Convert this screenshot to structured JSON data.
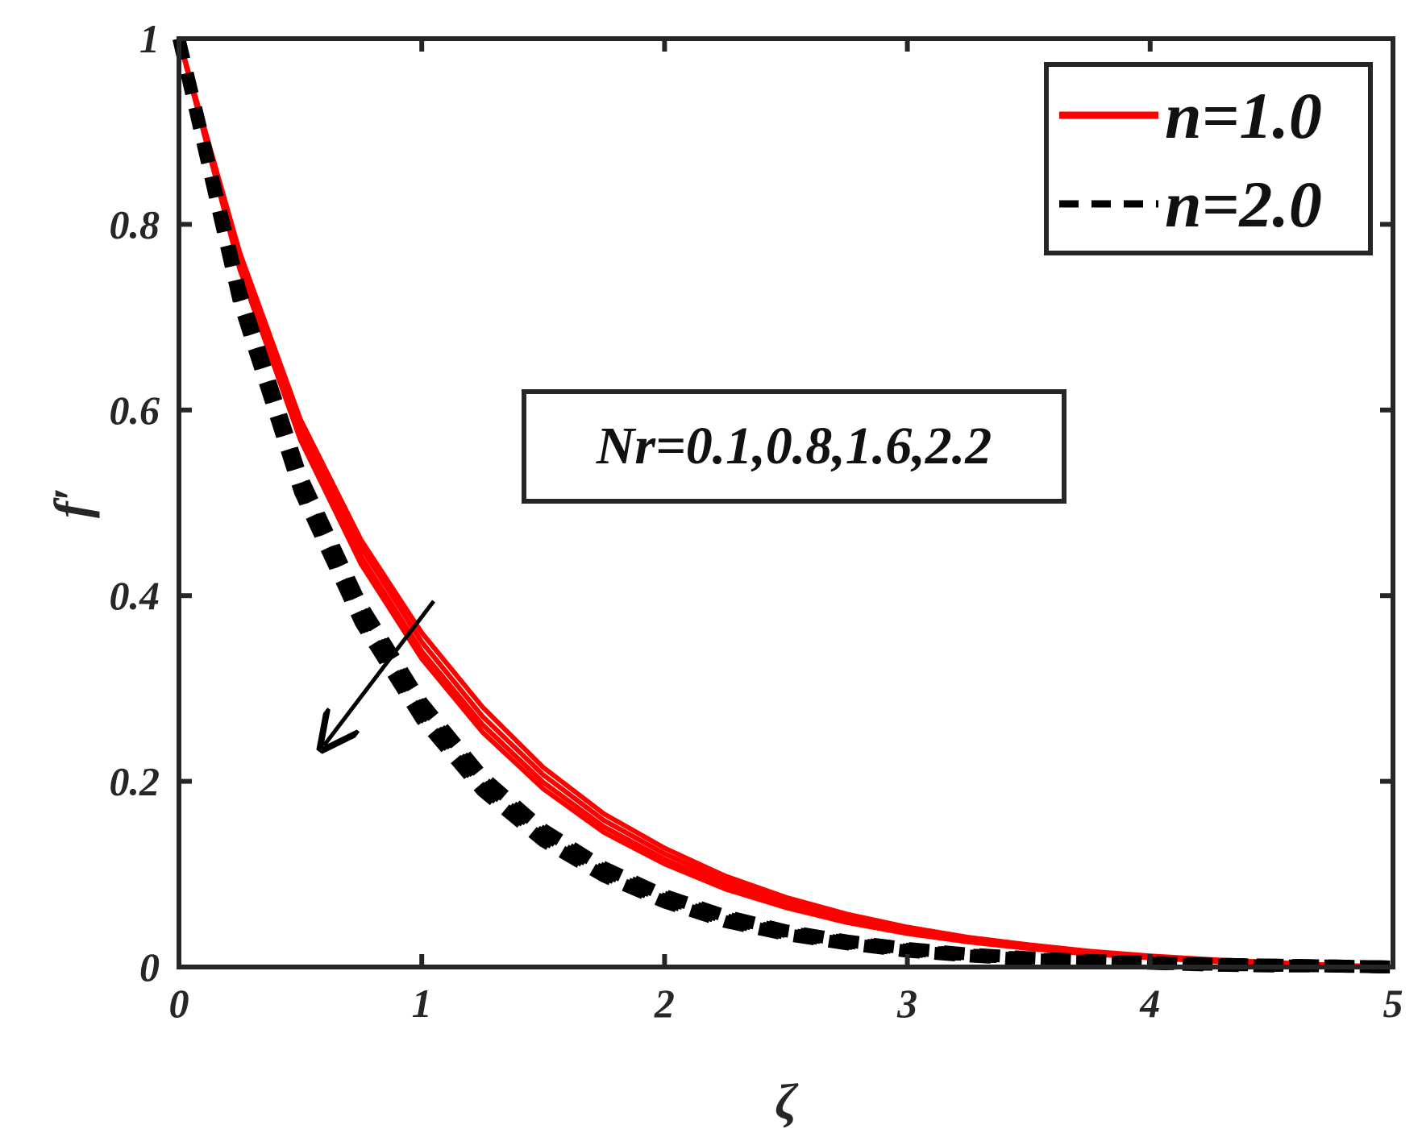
{
  "chart_data": {
    "type": "line",
    "xlabel": "ζ",
    "ylabel": "f′",
    "xlim": [
      0,
      5
    ],
    "ylim": [
      0,
      1
    ],
    "xticks": [
      "0",
      "1",
      "2",
      "3",
      "4",
      "5"
    ],
    "yticks": [
      "0",
      "0.2",
      "0.4",
      "0.6",
      "0.8",
      "1"
    ],
    "grid": false,
    "legend_position": "top-right",
    "legend": [
      {
        "label": "n=1.0",
        "color": "#ff0000",
        "style": "solid"
      },
      {
        "label": "n=2.0",
        "color": "#000000",
        "style": "dashed"
      }
    ],
    "annotation": {
      "text": "Nr=0.1,0.8,1.6,2.2",
      "arrow_direction": "decreasing with Nr"
    },
    "x": [
      0,
      0.25,
      0.5,
      0.75,
      1,
      1.25,
      1.5,
      1.75,
      2,
      2.25,
      2.5,
      2.75,
      3,
      3.25,
      3.5,
      3.75,
      4,
      4.25,
      4.5,
      4.75,
      5
    ],
    "series": [
      {
        "group": "n=1.0",
        "Nr": 0.1,
        "color": "#ff0000",
        "style": "solid",
        "y": [
          1,
          0.77,
          0.59,
          0.46,
          0.36,
          0.28,
          0.215,
          0.165,
          0.128,
          0.098,
          0.075,
          0.057,
          0.043,
          0.032,
          0.024,
          0.017,
          0.012,
          0.008,
          0.005,
          0.002,
          0
        ]
      },
      {
        "group": "n=1.0",
        "Nr": 0.8,
        "color": "#ff0000",
        "style": "solid",
        "y": [
          1,
          0.765,
          0.585,
          0.452,
          0.35,
          0.27,
          0.207,
          0.158,
          0.122,
          0.093,
          0.071,
          0.054,
          0.041,
          0.03,
          0.022,
          0.016,
          0.011,
          0.007,
          0.004,
          0.002,
          0
        ]
      },
      {
        "group": "n=1.0",
        "Nr": 1.6,
        "color": "#ff0000",
        "style": "solid",
        "y": [
          1,
          0.758,
          0.576,
          0.442,
          0.34,
          0.261,
          0.199,
          0.151,
          0.116,
          0.088,
          0.067,
          0.051,
          0.038,
          0.028,
          0.021,
          0.015,
          0.01,
          0.007,
          0.004,
          0.002,
          0
        ]
      },
      {
        "group": "n=1.0",
        "Nr": 2.2,
        "color": "#ff0000",
        "style": "solid",
        "y": [
          1,
          0.752,
          0.568,
          0.434,
          0.332,
          0.253,
          0.192,
          0.145,
          0.111,
          0.084,
          0.064,
          0.048,
          0.036,
          0.027,
          0.02,
          0.014,
          0.01,
          0.006,
          0.004,
          0.002,
          0
        ]
      },
      {
        "group": "n=2.0",
        "Nr": 0.1,
        "color": "#000000",
        "style": "dashed",
        "y": [
          1,
          0.73,
          0.53,
          0.39,
          0.285,
          0.205,
          0.148,
          0.107,
          0.077,
          0.055,
          0.039,
          0.028,
          0.02,
          0.014,
          0.01,
          0.007,
          0.005,
          0.003,
          0.002,
          0.001,
          0
        ]
      },
      {
        "group": "n=2.0",
        "Nr": 0.8,
        "color": "#000000",
        "style": "dashed",
        "y": [
          1,
          0.725,
          0.524,
          0.383,
          0.279,
          0.2,
          0.144,
          0.104,
          0.075,
          0.053,
          0.038,
          0.027,
          0.019,
          0.013,
          0.009,
          0.006,
          0.004,
          0.003,
          0.002,
          0.001,
          0
        ]
      },
      {
        "group": "n=2.0",
        "Nr": 1.6,
        "color": "#000000",
        "style": "dashed",
        "y": [
          1,
          0.72,
          0.518,
          0.377,
          0.273,
          0.195,
          0.14,
          0.101,
          0.072,
          0.051,
          0.036,
          0.026,
          0.018,
          0.013,
          0.009,
          0.006,
          0.004,
          0.003,
          0.002,
          0.001,
          0
        ]
      },
      {
        "group": "n=2.0",
        "Nr": 2.2,
        "color": "#000000",
        "style": "dashed",
        "y": [
          1,
          0.715,
          0.512,
          0.371,
          0.267,
          0.19,
          0.136,
          0.098,
          0.07,
          0.049,
          0.035,
          0.025,
          0.017,
          0.012,
          0.008,
          0.006,
          0.004,
          0.002,
          0.001,
          0.001,
          0
        ]
      }
    ]
  }
}
